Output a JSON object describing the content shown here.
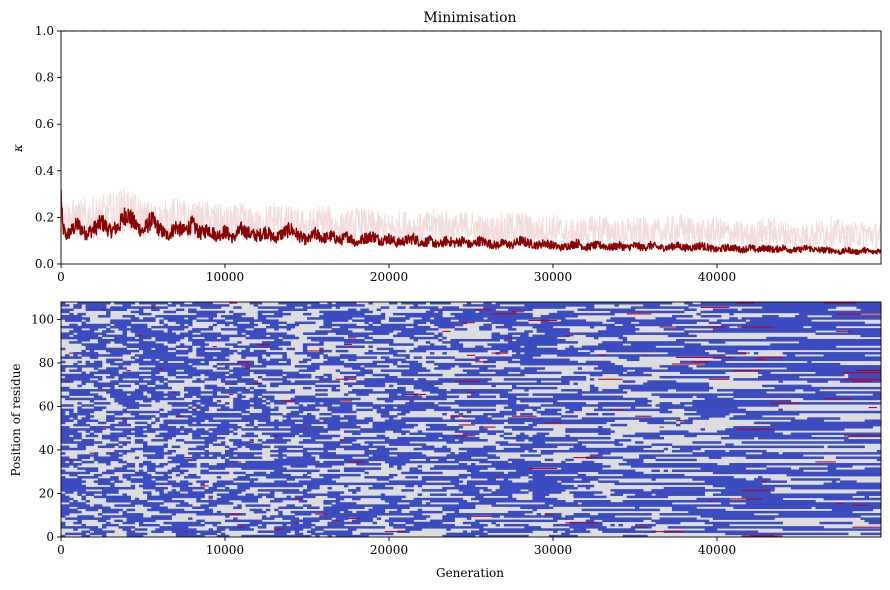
{
  "chart_data": [
    {
      "type": "line",
      "title": "Minimisation",
      "xlabel": "",
      "ylabel": "κ",
      "xlim": [
        0,
        50000
      ],
      "ylim": [
        0.0,
        1.0
      ],
      "x_ticks": [
        0,
        10000,
        20000,
        30000,
        40000
      ],
      "y_ticks": [
        0.0,
        0.2,
        0.4,
        0.6,
        0.8,
        1.0
      ],
      "x_tick_labels": [
        "0",
        "10000",
        "20000",
        "30000",
        "40000"
      ],
      "y_tick_labels": [
        "0.0",
        "0.2",
        "0.4",
        "0.6",
        "0.8",
        "1.0"
      ],
      "reference_line": {
        "y": 1.0,
        "style": "dashed",
        "color": "#b0b0b0"
      },
      "grid": false,
      "series": [
        {
          "role": "primary",
          "color": "#8b0000",
          "x": [
            0,
            100,
            300,
            600,
            1000,
            1500,
            2000,
            2500,
            3000,
            3500,
            4000,
            4500,
            5000,
            5500,
            6000,
            6500,
            7000,
            7500,
            8000,
            8500,
            9000,
            9500,
            10000,
            10500,
            11000,
            11500,
            12000,
            12500,
            13000,
            13500,
            14000,
            14500,
            15000,
            15500,
            16000,
            16500,
            17000,
            17500,
            18000,
            18500,
            19000,
            19500,
            20000,
            20500,
            21000,
            21500,
            22000,
            22500,
            23000,
            23500,
            24000,
            24500,
            25000,
            25500,
            26000,
            26500,
            27000,
            27500,
            28000,
            28500,
            29000,
            29500,
            30000,
            30500,
            31000,
            31500,
            32000,
            32500,
            33000,
            33500,
            34000,
            34500,
            35000,
            35500,
            36000,
            36500,
            37000,
            37500,
            38000,
            38500,
            39000,
            39500,
            40000,
            40500,
            41000,
            41500,
            42000,
            42500,
            43000,
            43500,
            44000,
            44500,
            45000,
            45500,
            46000,
            46500,
            47000,
            47500,
            48000,
            48500,
            49000,
            49500,
            50000
          ],
          "y": [
            0.3,
            0.16,
            0.12,
            0.14,
            0.17,
            0.13,
            0.15,
            0.18,
            0.14,
            0.16,
            0.22,
            0.17,
            0.14,
            0.19,
            0.15,
            0.12,
            0.16,
            0.14,
            0.17,
            0.13,
            0.15,
            0.12,
            0.14,
            0.11,
            0.15,
            0.13,
            0.12,
            0.14,
            0.11,
            0.13,
            0.15,
            0.12,
            0.1,
            0.13,
            0.11,
            0.12,
            0.1,
            0.12,
            0.09,
            0.11,
            0.12,
            0.1,
            0.11,
            0.09,
            0.1,
            0.11,
            0.09,
            0.1,
            0.08,
            0.1,
            0.09,
            0.1,
            0.08,
            0.1,
            0.09,
            0.08,
            0.09,
            0.08,
            0.1,
            0.09,
            0.08,
            0.09,
            0.08,
            0.07,
            0.08,
            0.09,
            0.07,
            0.08,
            0.08,
            0.07,
            0.08,
            0.07,
            0.08,
            0.07,
            0.08,
            0.07,
            0.07,
            0.08,
            0.07,
            0.07,
            0.08,
            0.07,
            0.06,
            0.07,
            0.07,
            0.06,
            0.07,
            0.06,
            0.07,
            0.06,
            0.07,
            0.06,
            0.06,
            0.07,
            0.06,
            0.06,
            0.06,
            0.05,
            0.06,
            0.05,
            0.06,
            0.05,
            0.06
          ]
        },
        {
          "role": "background",
          "color": "#f2dcdc",
          "x": [
            0,
            1000,
            2000,
            3000,
            4000,
            5000,
            6000,
            7000,
            8000,
            9000,
            10000,
            11000,
            12000,
            13000,
            14000,
            15000,
            16000,
            17000,
            18000,
            19000,
            20000,
            21000,
            22000,
            23000,
            24000,
            25000,
            26000,
            27000,
            28000,
            29000,
            30000,
            31000,
            32000,
            33000,
            34000,
            35000,
            36000,
            37000,
            38000,
            39000,
            40000,
            41000,
            42000,
            43000,
            44000,
            45000,
            46000,
            47000,
            48000,
            49000,
            50000
          ],
          "y": [
            0.2,
            0.19,
            0.2,
            0.21,
            0.23,
            0.19,
            0.18,
            0.2,
            0.18,
            0.19,
            0.17,
            0.18,
            0.16,
            0.19,
            0.17,
            0.16,
            0.18,
            0.15,
            0.17,
            0.16,
            0.15,
            0.16,
            0.15,
            0.17,
            0.15,
            0.16,
            0.14,
            0.15,
            0.16,
            0.14,
            0.15,
            0.13,
            0.14,
            0.15,
            0.13,
            0.14,
            0.13,
            0.14,
            0.15,
            0.13,
            0.14,
            0.13,
            0.12,
            0.14,
            0.13,
            0.12,
            0.13,
            0.14,
            0.12,
            0.13,
            0.12
          ]
        }
      ]
    },
    {
      "type": "heatmap",
      "title": "",
      "xlabel": "Generation",
      "ylabel": "Position of residue",
      "xlim": [
        0,
        50000
      ],
      "ylim": [
        0,
        108
      ],
      "x_ticks": [
        0,
        10000,
        20000,
        30000,
        40000
      ],
      "y_ticks": [
        0,
        20,
        40,
        60,
        80,
        100
      ],
      "x_tick_labels": [
        "0",
        "10000",
        "20000",
        "30000",
        "40000"
      ],
      "y_tick_labels": [
        "0",
        "20",
        "40",
        "60",
        "80",
        "100"
      ],
      "colors": {
        "low": "#3b4cc0",
        "mid": "#dddddd",
        "high": "#b40426"
      },
      "n_rows": 108,
      "n_cols": 200
    }
  ]
}
